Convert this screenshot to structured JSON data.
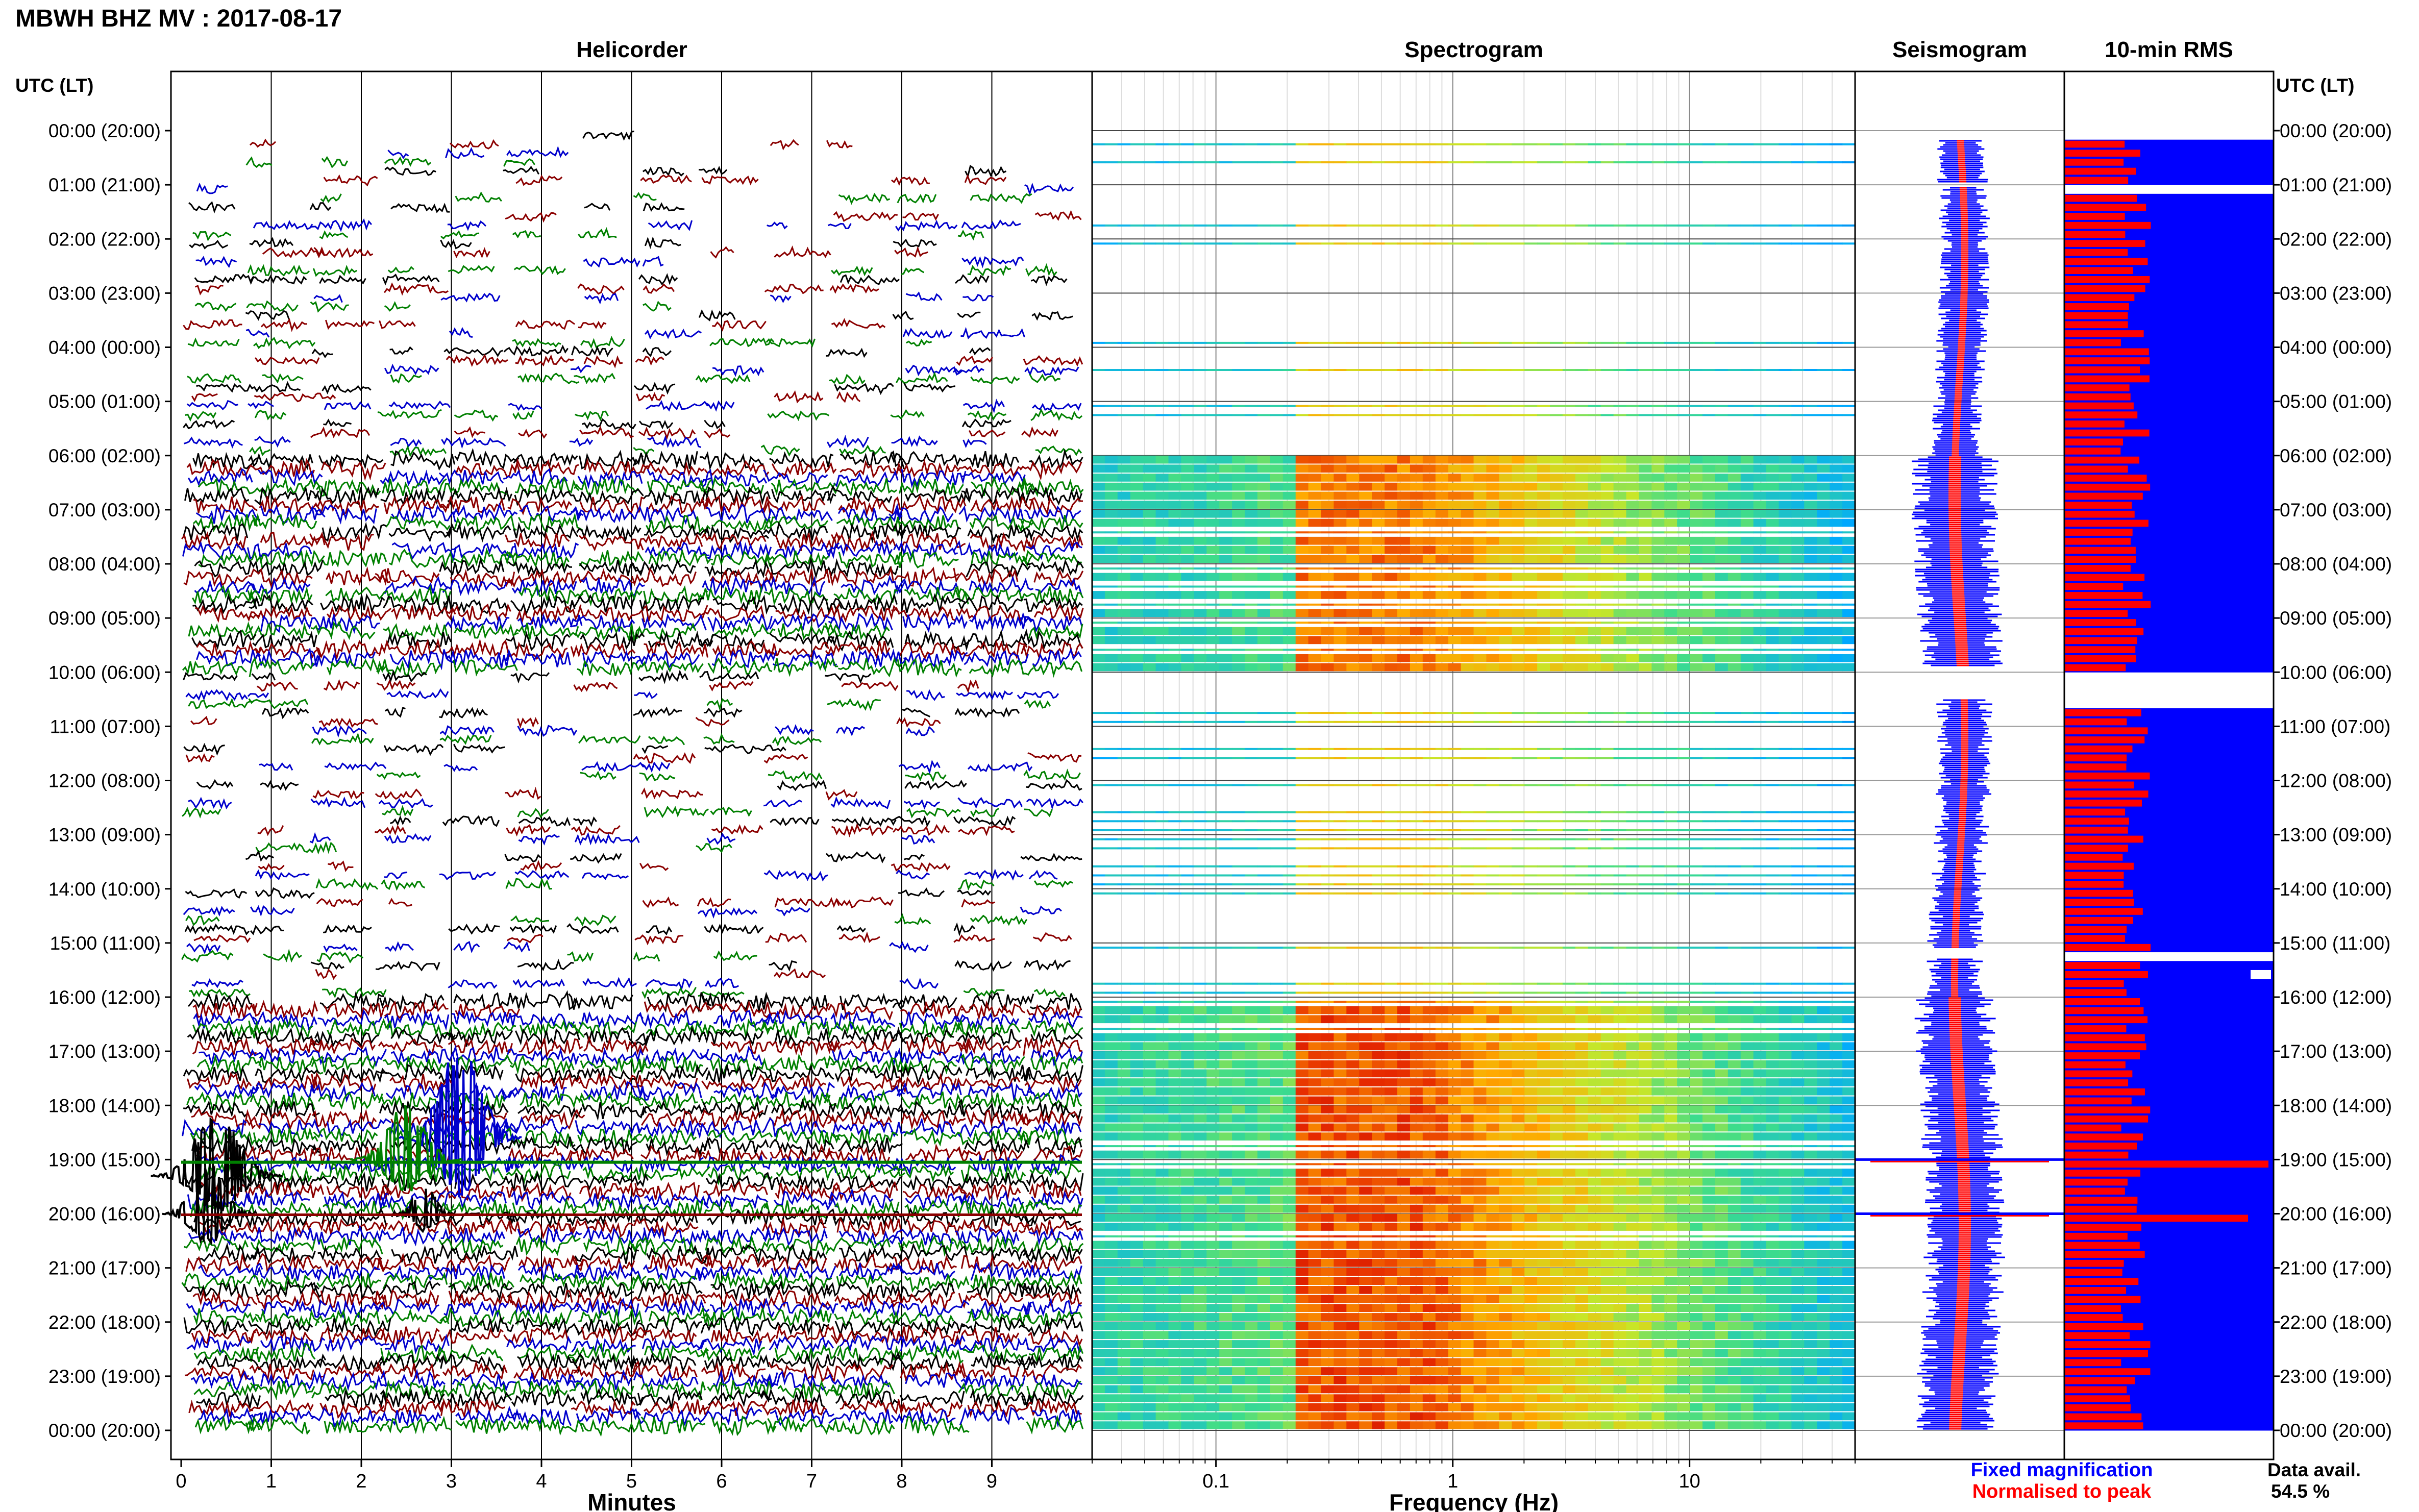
{
  "title": "MBWH BHZ MV : 2017-08-17",
  "panels": {
    "helicorder": "Helicorder",
    "spectrogram": "Spectrogram",
    "seismogram": "Seismogram",
    "rms": "10-min RMS"
  },
  "time_axis_label": "UTC (LT)",
  "hour_labels": [
    "00:00 (20:00)",
    "01:00 (21:00)",
    "02:00 (22:00)",
    "03:00 (23:00)",
    "04:00 (00:00)",
    "05:00 (01:00)",
    "06:00 (02:00)",
    "07:00 (03:00)",
    "08:00 (04:00)",
    "09:00 (05:00)",
    "10:00 (06:00)",
    "11:00 (07:00)",
    "12:00 (08:00)",
    "13:00 (09:00)",
    "14:00 (10:00)",
    "15:00 (11:00)",
    "16:00 (12:00)",
    "17:00 (13:00)",
    "18:00 (14:00)",
    "19:00 (15:00)",
    "20:00 (16:00)",
    "21:00 (17:00)",
    "22:00 (18:00)",
    "23:00 (19:00)",
    "00:00 (20:00)"
  ],
  "helicorder_xlabel": "Minutes",
  "helicorder_ticks": [
    "0",
    "1",
    "2",
    "3",
    "4",
    "5",
    "6",
    "7",
    "8",
    "9"
  ],
  "spectrogram_xlabel": "Frequency (Hz)",
  "spectrogram_ticks": [
    "0.1",
    "1",
    "10"
  ],
  "legend": {
    "fixed": "Fixed magnification",
    "normalised": "Normalised to peak",
    "fixed_color": "#0000ff",
    "normalised_color": "#ff0000"
  },
  "data_avail_label": "Data avail.",
  "data_avail_value": "54.5 %",
  "trace_colors": [
    "#000000",
    "#8b0000",
    "#0000cc",
    "#008000"
  ],
  "chart_data": [
    {
      "type": "line",
      "title": "Helicorder",
      "xlabel": "Minutes",
      "xlim": [
        0,
        10
      ],
      "ylabel": "UTC (LT)",
      "ylim_hours": [
        0,
        24
      ],
      "description_lines": "144 traces of 10 minutes each; high-amplitude event near 18:30-20:00 UTC",
      "data_gaps_hours": [
        [
          0,
          6
        ],
        [
          10,
          16
        ]
      ]
    },
    {
      "type": "heatmap",
      "title": "Spectrogram",
      "xlabel": "Frequency (Hz)",
      "xscale": "log",
      "xlim": [
        0.03,
        50
      ],
      "ylim_hours": [
        0,
        24
      ],
      "peak_band_hz": [
        0.2,
        0.6
      ]
    },
    {
      "type": "line",
      "title": "Seismogram",
      "ylim_hours": [
        0,
        24
      ],
      "series": [
        {
          "name": "Fixed magnification",
          "color": "#0000ff"
        },
        {
          "name": "Normalised to peak",
          "color": "#ff0000"
        }
      ]
    },
    {
      "type": "bar",
      "title": "10-min RMS",
      "ylim_hours": [
        0,
        24
      ],
      "bin_minutes": 10,
      "peaks_hours": [
        19.0,
        20.0
      ],
      "series": [
        {
          "name": "Fixed magnification",
          "color": "#0000ff"
        },
        {
          "name": "Normalised to peak",
          "color": "#ff0000"
        }
      ]
    }
  ]
}
